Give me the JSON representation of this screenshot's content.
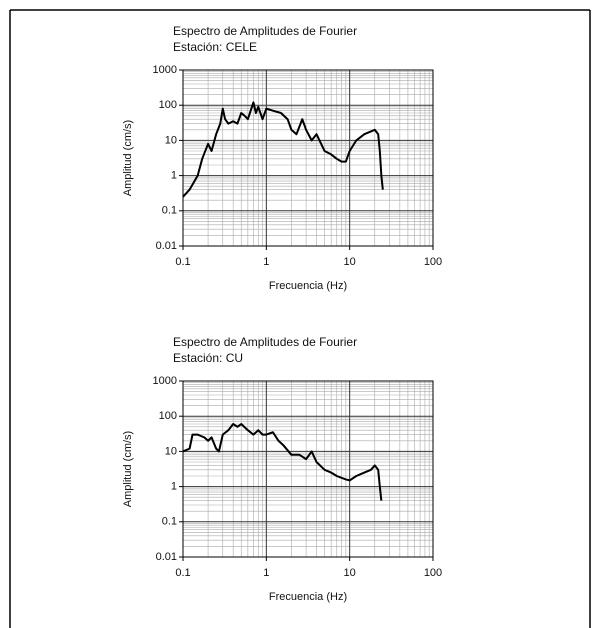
{
  "chart_data": [
    {
      "type": "line",
      "title": "Espectro de Amplitudes de Fourier",
      "subtitle": "Estación: CELE",
      "x_label": "Frecuencia (Hz)",
      "y_label": "Amplitud (cm/s)",
      "x": [
        0.1,
        0.12,
        0.15,
        0.17,
        0.2,
        0.22,
        0.25,
        0.28,
        0.3,
        0.32,
        0.35,
        0.4,
        0.45,
        0.5,
        0.55,
        0.6,
        0.7,
        0.75,
        0.8,
        0.9,
        1,
        1.2,
        1.5,
        1.8,
        2,
        2.3,
        2.7,
        3,
        3.5,
        4,
        5,
        6,
        7,
        8,
        9,
        10,
        12,
        15,
        18,
        20,
        22,
        23,
        24,
        25
      ],
      "values": [
        0.25,
        0.4,
        1,
        3,
        8,
        5,
        15,
        30,
        80,
        40,
        30,
        35,
        30,
        60,
        50,
        40,
        120,
        60,
        90,
        40,
        80,
        70,
        60,
        40,
        20,
        15,
        40,
        20,
        10,
        15,
        5,
        4,
        3,
        2.5,
        2.5,
        5,
        10,
        15,
        18,
        20,
        15,
        5,
        1,
        0.4
      ],
      "color": "#000000",
      "xlim": [
        0.1,
        100
      ],
      "ylim": [
        0.01,
        1000
      ],
      "xticks": [
        0.1,
        1,
        10,
        100
      ],
      "yticks": [
        0.01,
        0.1,
        1,
        10,
        100,
        1000
      ],
      "log_x": true,
      "log_y": true,
      "grid": true
    },
    {
      "type": "line",
      "title": "Espectro de Amplitudes de Fourier",
      "subtitle": "Estación: CU",
      "x_label": "Frecuencia (Hz)",
      "y_label": "Amplitud (cm/s)",
      "x": [
        0.1,
        0.12,
        0.13,
        0.15,
        0.18,
        0.2,
        0.22,
        0.25,
        0.27,
        0.3,
        0.35,
        0.4,
        0.45,
        0.5,
        0.6,
        0.7,
        0.8,
        0.9,
        1,
        1.2,
        1.4,
        1.6,
        2,
        2.5,
        3,
        3.5,
        4,
        5,
        6,
        7,
        9,
        10,
        12,
        15,
        18,
        20,
        22,
        23,
        24
      ],
      "values": [
        10,
        12,
        30,
        30,
        25,
        20,
        25,
        12,
        10,
        30,
        40,
        60,
        50,
        60,
        40,
        30,
        40,
        30,
        30,
        35,
        20,
        15,
        8,
        8,
        6,
        10,
        5,
        3,
        2.5,
        2,
        1.6,
        1.5,
        2,
        2.5,
        3,
        4,
        3,
        1,
        0.4
      ],
      "color": "#000000",
      "xlim": [
        0.1,
        100
      ],
      "ylim": [
        0.01,
        1000
      ],
      "xticks": [
        0.1,
        1,
        10,
        100
      ],
      "yticks": [
        0.01,
        0.1,
        1,
        10,
        100,
        1000
      ],
      "log_x": true,
      "log_y": true,
      "grid": true
    }
  ]
}
